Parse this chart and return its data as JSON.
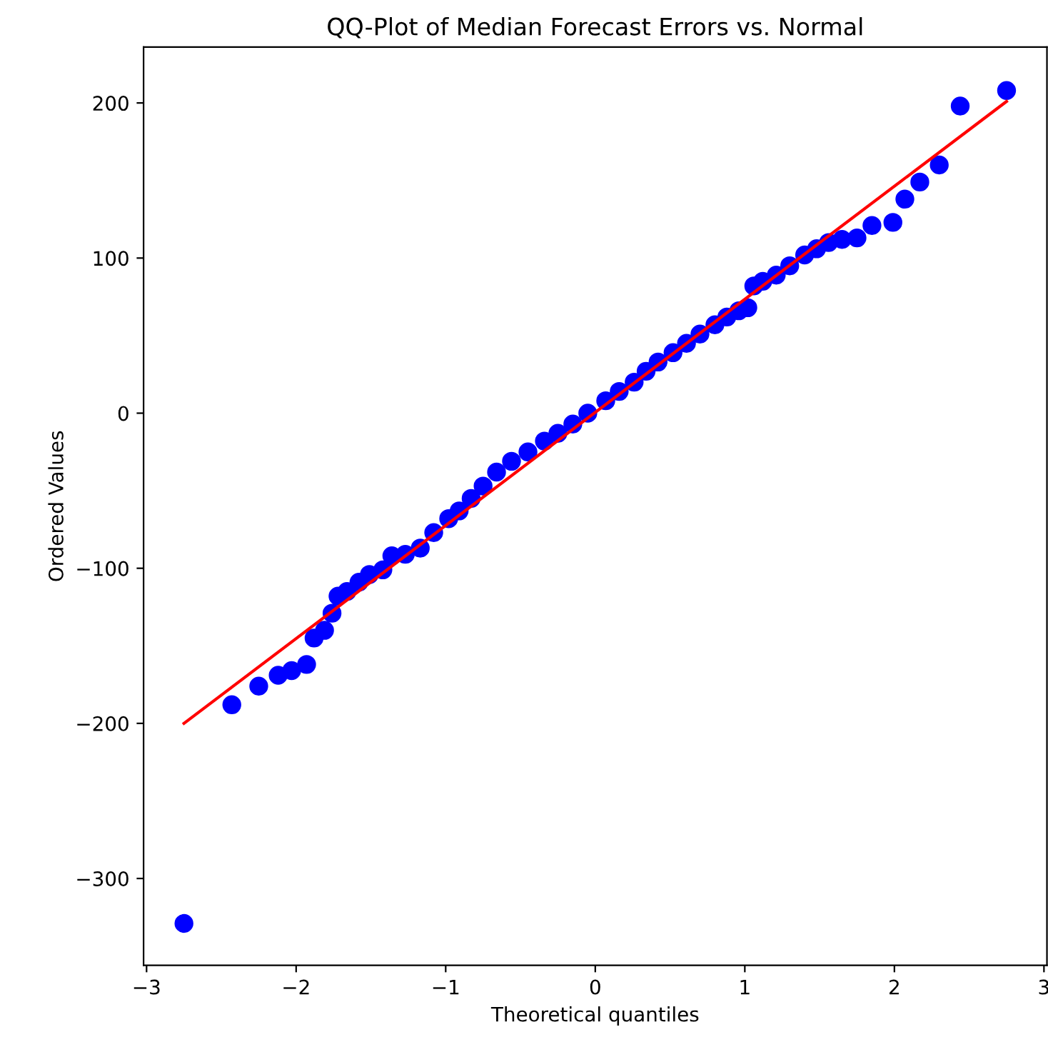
{
  "chart_data": {
    "type": "scatter",
    "title": "QQ-Plot of Median Forecast Errors vs. Normal",
    "xlabel": "Theoretical quantiles",
    "ylabel": "Ordered Values",
    "grid": false,
    "series": [
      {
        "color": "#0000ff",
        "marker": "circle",
        "x": [
          -2.75,
          -2.43,
          -2.25,
          -2.12,
          -2.03,
          -1.93,
          -1.88,
          -1.81,
          -1.76,
          -1.72,
          -1.66,
          -1.58,
          -1.51,
          -1.42,
          -1.36,
          -1.27,
          -1.17,
          -1.08,
          -0.98,
          -0.91,
          -0.83,
          -0.75,
          -0.66,
          -0.56,
          -0.45,
          -0.34,
          -0.25,
          -0.15,
          -0.05,
          0.07,
          0.16,
          0.26,
          0.34,
          0.42,
          0.52,
          0.61,
          0.7,
          0.8,
          0.88,
          0.96,
          1.02,
          1.06,
          1.12,
          1.21,
          1.3,
          1.4,
          1.48,
          1.56,
          1.65,
          1.75,
          1.85,
          1.99,
          2.07,
          2.17,
          2.3,
          2.44,
          2.75
        ],
        "values": [
          -329,
          -188,
          -176,
          -169,
          -166,
          -162,
          -145,
          -140,
          -129,
          -118,
          -115,
          -109,
          -104,
          -101,
          -92,
          -91,
          -87,
          -77,
          -68,
          -63,
          -55,
          -47,
          -38,
          -31,
          -25,
          -18,
          -13,
          -7,
          0,
          8,
          14,
          20,
          27,
          33,
          39,
          45,
          51,
          57,
          62,
          66,
          68,
          82,
          85,
          89,
          95,
          102,
          106,
          110,
          112,
          113,
          121,
          123,
          138,
          149,
          160,
          198,
          208
        ]
      },
      {
        "type": "line",
        "color": "#ff0000",
        "x": [
          -2.75,
          2.75
        ],
        "values": [
          -200,
          201
        ]
      }
    ],
    "xlim": [
      -3.02,
      3.02
    ],
    "ylim": [
      -356,
      236
    ],
    "xticks": [
      {
        "value": -3,
        "label": "−3"
      },
      {
        "value": -2,
        "label": "−2"
      },
      {
        "value": -1,
        "label": "−1"
      },
      0,
      1,
      2,
      3
    ],
    "yticks": [
      {
        "value": -300,
        "label": "−300"
      },
      {
        "value": -200,
        "label": "−200"
      },
      {
        "value": -100,
        "label": "−100"
      },
      0,
      100,
      200
    ]
  }
}
